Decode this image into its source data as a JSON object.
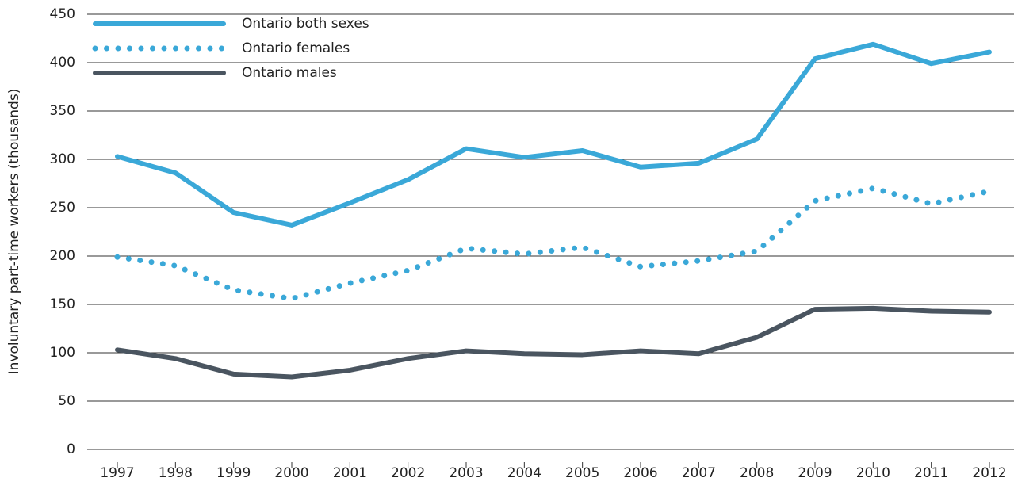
{
  "chart_data": {
    "type": "line",
    "y_label": "Involuntary part-time workers (thousands)",
    "categories": [
      "1997",
      "1998",
      "1999",
      "2000",
      "2001",
      "2002",
      "2003",
      "2004",
      "2005",
      "2006",
      "2007",
      "2008",
      "2009",
      "2010",
      "2011",
      "2012"
    ],
    "series": [
      {
        "name": "Ontario both sexes",
        "color": "#3aa8d8",
        "style": "solid",
        "values": [
          303,
          286,
          245,
          232,
          255,
          279,
          311,
          302,
          309,
          292,
          296,
          321,
          404,
          419,
          399,
          411
        ]
      },
      {
        "name": "Ontario females",
        "color": "#3aa8d8",
        "style": "dotted",
        "values": [
          199,
          190,
          165,
          156,
          172,
          185,
          208,
          202,
          209,
          189,
          195,
          205,
          257,
          270,
          254,
          267
        ]
      },
      {
        "name": "Ontario males",
        "color": "#4a5560",
        "style": "solid",
        "values": [
          103,
          94,
          78,
          75,
          82,
          94,
          102,
          99,
          98,
          102,
          99,
          116,
          145,
          146,
          143,
          142
        ]
      }
    ],
    "ylim": [
      0,
      450
    ],
    "yticks": [
      0,
      50,
      100,
      150,
      200,
      250,
      300,
      350,
      400,
      450
    ],
    "grid": true
  }
}
